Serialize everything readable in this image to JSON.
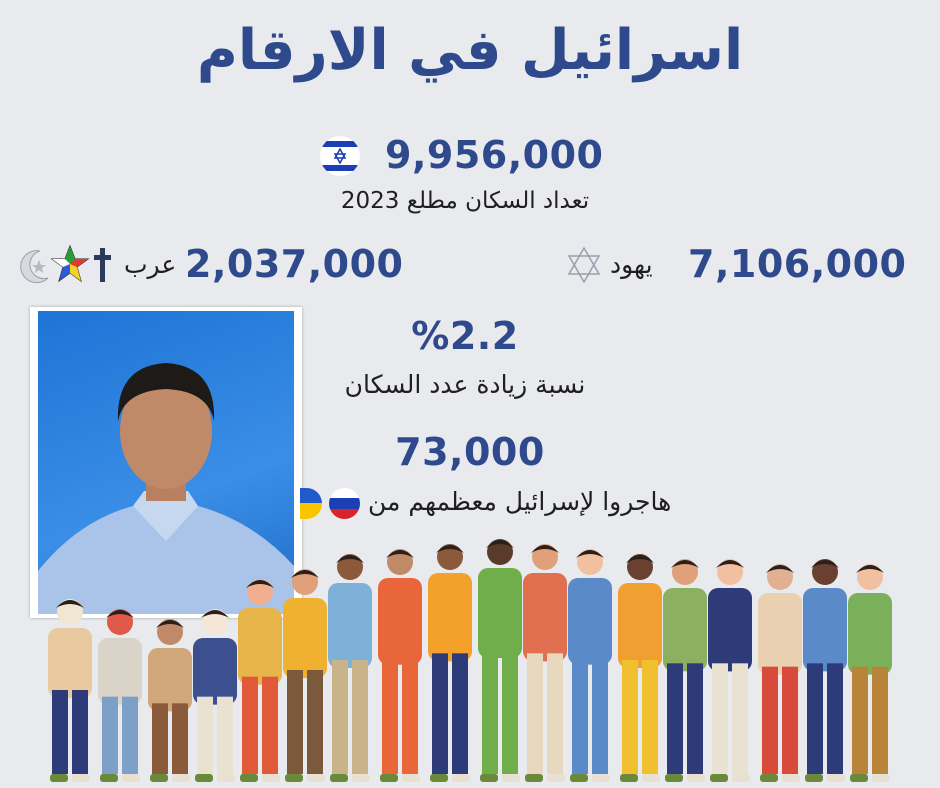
{
  "title": "اسرائيل في الارقام",
  "total_population": {
    "value": "9,956,000",
    "label": "تعداد السكان مطلع 2023",
    "flag_icon": "israel-flag-icon"
  },
  "jews": {
    "value": "7,106,000",
    "label": "يهود",
    "icon": "star-of-david-icon"
  },
  "arabs": {
    "value": "2,037,000",
    "label": "عرب",
    "icons": [
      "cross-icon",
      "druze-star-icon",
      "crescent-icon"
    ]
  },
  "growth": {
    "value": "%2.2",
    "label": "نسبة زيادة عدد السكان"
  },
  "immigration": {
    "value": "73,000",
    "label": "هاجروا لإسرائيل معظمهم من",
    "flags": [
      "russia-flag-icon",
      "ukraine-flag-icon"
    ]
  },
  "colors": {
    "accent": "#2e4a8c",
    "background": "#e9eaee",
    "text": "#1f1f1f"
  }
}
